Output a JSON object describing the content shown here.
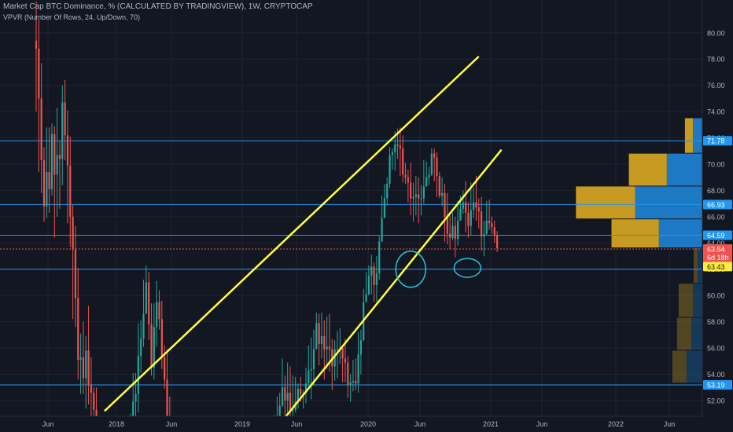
{
  "header": {
    "title": "Market Cap BTC Dominance, % (CALCULATED BY TRADINGVIEW), 1W, CRYPTOCAP",
    "indicator": "VPVR (Number Of Rows, 24, Up/Down, 70)"
  },
  "colors": {
    "background": "#131722",
    "grid": "#1f2330",
    "up": "#26a69a",
    "down": "#ef5350",
    "trendline": "#ffff3b",
    "hline": "#2196f3",
    "circle": "#26c6da",
    "vp_up": "#1e79c4",
    "vp_down": "#c79a21",
    "axis_text": "#b2b5be"
  },
  "chart_data": {
    "type": "candlestick",
    "y_axis": {
      "position": "right",
      "range": [
        50.8,
        82.5
      ],
      "tick_labels": [
        "52.00",
        "54.00",
        "56.00",
        "58.00",
        "60.00",
        "62.00",
        "64.00",
        "66.00",
        "68.00",
        "70.00",
        "72.00",
        "74.00",
        "76.00",
        "78.00",
        "80.00"
      ]
    },
    "x_axis": {
      "tick_labels": [
        "Jun",
        "2018",
        "Jun",
        "2019",
        "Jun",
        "2020",
        "Jun",
        "2021",
        "Jun",
        "2022",
        "Jun"
      ]
    },
    "price_tags": [
      {
        "value": 71.78,
        "label": "71.78",
        "bg": "#2196f3",
        "fg": "#ffffff"
      },
      {
        "value": 66.93,
        "label": "66.93",
        "bg": "#2196f3",
        "fg": "#ffffff"
      },
      {
        "value": 64.59,
        "label": "64.59",
        "bg": "#2196f3",
        "fg": "#ffffff"
      },
      {
        "value": 63.54,
        "label": "63.54",
        "bg": "#ef5350",
        "fg": "#ffffff"
      },
      {
        "value": 62.9,
        "label": "6d 18h",
        "bg": "#ef5350",
        "fg": "#ffffff"
      },
      {
        "value": 62.2,
        "label": "63.43",
        "bg": "#ffeb3b",
        "fg": "#131722"
      },
      {
        "value": 53.19,
        "label": "53.19",
        "bg": "#2196f3",
        "fg": "#ffffff"
      }
    ],
    "horizontal_lines": [
      71.78,
      66.93,
      64.59,
      62.0,
      53.19
    ],
    "last_price": 63.54,
    "trendlines": [
      {
        "from": [
          "2017-12",
          51.2
        ],
        "to": [
          "2020-09",
          78.2
        ]
      },
      {
        "from": [
          "2019-04",
          50.8
        ],
        "to": [
          "2020-11",
          71.1
        ]
      }
    ],
    "circled_lows": [
      {
        "center": [
          "2020-03",
          62.0
        ]
      },
      {
        "center": [
          "2020-08",
          62.1
        ]
      }
    ],
    "volume_profile": [
      {
        "price_low": 63.6,
        "price_high": 65.8,
        "up": 0.55,
        "down": 0.6
      },
      {
        "price_low": 65.8,
        "price_high": 68.3,
        "up": 0.85,
        "down": 0.75
      },
      {
        "price_low": 68.3,
        "price_high": 70.8,
        "up": 0.45,
        "down": 0.48
      },
      {
        "price_low": 70.8,
        "price_high": 73.5,
        "up": 0.12,
        "down": 0.1
      },
      {
        "price_low": 60.9,
        "price_high": 63.6,
        "up": 0.06,
        "down": 0.05,
        "faded": true
      },
      {
        "price_low": 58.3,
        "price_high": 60.9,
        "up": 0.12,
        "down": 0.18,
        "faded": true
      },
      {
        "price_low": 55.8,
        "price_high": 58.3,
        "up": 0.14,
        "down": 0.18,
        "faded": true
      },
      {
        "price_low": 53.3,
        "price_high": 55.8,
        "up": 0.2,
        "down": 0.18,
        "faded": true
      }
    ],
    "candles_weekly": [
      [
        79.4,
        78.8,
        82.4,
        74.0
      ],
      [
        78.8,
        75.0,
        81.0,
        69.4
      ],
      [
        75.0,
        70.3,
        77.7,
        67.8
      ],
      [
        70.3,
        66.8,
        71.3,
        65.6
      ],
      [
        66.8,
        69.4,
        72.8,
        65.9
      ],
      [
        69.4,
        68.1,
        72.8,
        66.3
      ],
      [
        68.1,
        72.3,
        73.1,
        67.6
      ],
      [
        72.3,
        69.2,
        72.9,
        64.4
      ],
      [
        69.2,
        70.7,
        74.3,
        66.0
      ],
      [
        70.7,
        70.4,
        71.8,
        66.6
      ],
      [
        70.4,
        74.7,
        76.0,
        68.4
      ],
      [
        74.7,
        72.2,
        76.4,
        70.3
      ],
      [
        72.2,
        69.9,
        74.1,
        65.5
      ],
      [
        69.9,
        66.0,
        72.1,
        63.7
      ],
      [
        66.0,
        63.5,
        66.9,
        58.2
      ],
      [
        63.5,
        59.8,
        65.3,
        57.6
      ],
      [
        59.8,
        55.1,
        62.1,
        53.6
      ],
      [
        55.1,
        55.3,
        57.1,
        52.5
      ],
      [
        55.3,
        53.7,
        58.0,
        52.5
      ],
      [
        53.7,
        55.8,
        56.9,
        51.4
      ],
      [
        55.8,
        53.2,
        59.2,
        51.7
      ],
      [
        53.2,
        52.6,
        55.3,
        49.3
      ],
      [
        52.6,
        51.3,
        53.0,
        48.0
      ],
      [
        51.3,
        48.0,
        53.0,
        45.3
      ],
      [
        48.0,
        46.6,
        49.5,
        44.9
      ],
      [
        46.6,
        45.2,
        49.3,
        43.7
      ],
      [
        45.2,
        46.9,
        48.4,
        43.2
      ],
      [
        46.9,
        45.3,
        49.1,
        43.6
      ],
      [
        45.3,
        47.5,
        48.4,
        43.1
      ],
      [
        47.5,
        45.8,
        50.1,
        43.5
      ],
      [
        45.8,
        46.3,
        49.0,
        44.1
      ],
      [
        46.3,
        47.6,
        48.9,
        46.0
      ],
      [
        47.6,
        46.8,
        49.9,
        43.4
      ],
      [
        46.8,
        45.9,
        48.2,
        44.1
      ],
      [
        45.9,
        45.6,
        49.2,
        42.9
      ],
      [
        45.6,
        46.7,
        47.9,
        44.2
      ],
      [
        46.7,
        49.5,
        51.0,
        45.7
      ],
      [
        49.5,
        51.9,
        54.1,
        48.2
      ],
      [
        51.9,
        52.5,
        54.1,
        49.3
      ],
      [
        52.5,
        55.4,
        57.9,
        51.1
      ],
      [
        55.4,
        56.7,
        58.1,
        54.1
      ],
      [
        56.7,
        58.6,
        61.2,
        56.1
      ],
      [
        58.6,
        61.0,
        62.3,
        59.9
      ],
      [
        61.0,
        57.8,
        61.8,
        56.6
      ],
      [
        57.8,
        54.5,
        59.4,
        53.9
      ],
      [
        54.5,
        57.6,
        59.4,
        53.6
      ],
      [
        57.6,
        59.5,
        61.1,
        56.1
      ],
      [
        59.5,
        58.2,
        60.4,
        57.4
      ],
      [
        58.2,
        55.3,
        59.6,
        54.4
      ],
      [
        55.3,
        53.6,
        56.2,
        52.9
      ],
      [
        53.6,
        50.5,
        55.9,
        48.4
      ],
      [
        50.5,
        49.2,
        52.3,
        45.3
      ],
      [
        49.2,
        46.9,
        49.8,
        42.1
      ],
      [
        46.9,
        38.6,
        47.3,
        34.8
      ],
      [
        38.6,
        37.2,
        40.2,
        34.0
      ],
      [
        37.2,
        34.2,
        38.4,
        32.7
      ],
      [
        34.2,
        33.6,
        36.5,
        32.3
      ],
      [
        33.6,
        35.9,
        37.7,
        32.0
      ],
      [
        35.9,
        33.0,
        38.2,
        31.7
      ],
      [
        33.0,
        34.6,
        34.8,
        30.9
      ],
      [
        34.6,
        38.4,
        39.5,
        34.1
      ],
      [
        38.4,
        42.7,
        43.6,
        36.6
      ],
      [
        42.7,
        44.3,
        46.0,
        40.0
      ],
      [
        44.3,
        45.7,
        46.8,
        44.2
      ],
      [
        45.7,
        44.4,
        48.1,
        41.4
      ],
      [
        44.4,
        44.7,
        46.9,
        42.1
      ],
      [
        44.7,
        43.6,
        45.6,
        41.2
      ],
      [
        43.6,
        40.2,
        44.9,
        37.8
      ],
      [
        40.2,
        38.4,
        40.5,
        36.4
      ],
      [
        38.4,
        37.4,
        40.8,
        36.7
      ],
      [
        37.4,
        38.3,
        39.9,
        36.6
      ],
      [
        38.3,
        37.4,
        39.4,
        36.3
      ],
      [
        37.4,
        37.8,
        39.5,
        34.8
      ],
      [
        37.8,
        40.1,
        41.0,
        36.0
      ],
      [
        40.1,
        42.4,
        43.8,
        38.8
      ],
      [
        42.4,
        41.1,
        43.3,
        39.4
      ],
      [
        41.1,
        43.1,
        44.7,
        39.6
      ],
      [
        43.1,
        42.5,
        44.7,
        41.4
      ],
      [
        42.5,
        39.8,
        44.1,
        37.3
      ],
      [
        39.8,
        38.9,
        40.9,
        37.7
      ],
      [
        38.9,
        38.5,
        40.1,
        37.2
      ],
      [
        38.5,
        38.6,
        40.1,
        37.2
      ],
      [
        38.6,
        38.5,
        40.2,
        35.8
      ],
      [
        38.5,
        38.3,
        41.0,
        37.6
      ],
      [
        38.3,
        39.4,
        40.9,
        37.6
      ],
      [
        39.4,
        40.5,
        42.4,
        38.0
      ],
      [
        40.5,
        41.0,
        43.3,
        40.1
      ],
      [
        41.0,
        42.0,
        43.0,
        39.8
      ],
      [
        42.0,
        44.7,
        46.0,
        41.0
      ],
      [
        44.7,
        46.6,
        47.1,
        45.5
      ],
      [
        46.6,
        47.3,
        47.8,
        45.3
      ],
      [
        47.3,
        48.4,
        50.9,
        47.3
      ],
      [
        48.4,
        49.6,
        52.3,
        46.8
      ],
      [
        49.6,
        51.6,
        52.6,
        48.8
      ],
      [
        51.6,
        53.0,
        55.2,
        51.5
      ],
      [
        53.0,
        52.0,
        53.9,
        49.5
      ],
      [
        52.0,
        52.6,
        54.9,
        50.4
      ],
      [
        52.6,
        51.2,
        54.6,
        50.2
      ],
      [
        51.2,
        51.3,
        53.9,
        49.4
      ],
      [
        51.3,
        51.9,
        53.8,
        51.1
      ],
      [
        51.9,
        52.9,
        53.3,
        51.4
      ],
      [
        52.9,
        52.5,
        53.8,
        51.9
      ],
      [
        52.5,
        52.6,
        52.8,
        51.4
      ],
      [
        52.6,
        53.3,
        54.5,
        51.8
      ],
      [
        53.3,
        54.3,
        56.2,
        53.1
      ],
      [
        54.3,
        54.4,
        56.8,
        52.1
      ],
      [
        54.4,
        55.9,
        57.4,
        53.1
      ],
      [
        55.9,
        57.9,
        58.7,
        56.2
      ],
      [
        57.9,
        56.3,
        58.6,
        54.7
      ],
      [
        56.3,
        56.9,
        58.7,
        55.2
      ],
      [
        56.9,
        55.9,
        58.1,
        53.6
      ],
      [
        55.9,
        56.1,
        58.4,
        54.4
      ],
      [
        56.1,
        55.9,
        58.6,
        54.2
      ],
      [
        55.9,
        54.6,
        56.7,
        52.8
      ],
      [
        54.6,
        55.9,
        56.6,
        53.5
      ],
      [
        55.9,
        55.9,
        57.3,
        53.7
      ],
      [
        55.9,
        56.0,
        57.5,
        54.8
      ],
      [
        56.0,
        55.2,
        56.2,
        53.4
      ],
      [
        55.2,
        54.9,
        56.7,
        53.4
      ],
      [
        54.9,
        53.2,
        55.4,
        52.2
      ],
      [
        53.2,
        53.4,
        54.0,
        51.9
      ],
      [
        53.4,
        53.5,
        55.1,
        52.7
      ],
      [
        53.5,
        53.3,
        55.2,
        52.8
      ],
      [
        53.3,
        55.5,
        57.2,
        52.6
      ],
      [
        55.5,
        56.6,
        57.4,
        54.0
      ],
      [
        56.6,
        59.5,
        60.5,
        56.5
      ],
      [
        59.5,
        60.1,
        61.8,
        59.5
      ],
      [
        60.1,
        61.5,
        62.3,
        60.0
      ],
      [
        61.5,
        62.2,
        63.1,
        60.1
      ],
      [
        62.2,
        60.8,
        62.5,
        59.5
      ],
      [
        60.8,
        61.7,
        63.0,
        59.5
      ],
      [
        61.7,
        64.1,
        64.5,
        61.2
      ],
      [
        64.1,
        65.9,
        67.6,
        64.1
      ],
      [
        65.9,
        67.4,
        68.5,
        66.1
      ],
      [
        67.4,
        68.5,
        69.0,
        66.9
      ],
      [
        68.5,
        70.7,
        71.3,
        68.2
      ],
      [
        70.7,
        70.9,
        71.2,
        69.6
      ],
      [
        70.9,
        71.5,
        72.5,
        69.5
      ],
      [
        71.5,
        71.4,
        72.7,
        70.4
      ],
      [
        71.4,
        71.2,
        72.8,
        69.1
      ],
      [
        71.2,
        69.2,
        72.2,
        68.6
      ],
      [
        69.2,
        69.0,
        70.1,
        68.5
      ],
      [
        69.0,
        68.6,
        69.6,
        67.1
      ],
      [
        68.6,
        67.4,
        70.1,
        66.1
      ],
      [
        67.4,
        67.5,
        68.6,
        65.6
      ],
      [
        67.5,
        67.7,
        69.1,
        66.1
      ],
      [
        67.7,
        67.4,
        69.0,
        65.5
      ],
      [
        67.4,
        67.4,
        68.4,
        66.1
      ],
      [
        67.4,
        68.3,
        70.3,
        67.0
      ],
      [
        68.3,
        69.0,
        70.2,
        68.8
      ],
      [
        69.0,
        69.2,
        69.8,
        68.4
      ],
      [
        69.2,
        70.8,
        71.2,
        69.1
      ],
      [
        70.8,
        70.5,
        71.2,
        68.7
      ],
      [
        70.5,
        69.1,
        70.9,
        67.5
      ],
      [
        69.1,
        67.6,
        69.4,
        67.4
      ],
      [
        67.6,
        67.8,
        69.0,
        66.8
      ],
      [
        67.8,
        66.0,
        68.5,
        64.1
      ],
      [
        66.0,
        64.7,
        67.8,
        63.9
      ],
      [
        64.7,
        64.4,
        66.1,
        63.5
      ],
      [
        64.4,
        65.3,
        66.3,
        64.2
      ],
      [
        65.3,
        64.3,
        66.0,
        62.9
      ],
      [
        64.3,
        65.7,
        67.2,
        63.8
      ],
      [
        65.7,
        66.6,
        67.6,
        65.8
      ],
      [
        66.6,
        67.1,
        68.0,
        66.2
      ],
      [
        67.1,
        66.3,
        68.7,
        64.8
      ],
      [
        66.3,
        65.3,
        67.1,
        64.4
      ],
      [
        65.3,
        66.5,
        68.6,
        64.6
      ],
      [
        66.5,
        67.1,
        68.2,
        65.9
      ],
      [
        67.1,
        66.7,
        69.1,
        65.7
      ],
      [
        66.7,
        66.4,
        67.4,
        65.1
      ],
      [
        66.4,
        64.5,
        67.5,
        63.4
      ],
      [
        64.5,
        64.7,
        65.7,
        63.0
      ],
      [
        64.7,
        65.7,
        67.2,
        64.6
      ],
      [
        65.7,
        65.5,
        67.3,
        65.0
      ],
      [
        65.5,
        65.2,
        66.0,
        64.7
      ],
      [
        65.2,
        64.6,
        65.7,
        64.0
      ],
      [
        64.6,
        63.6,
        64.9,
        63.3
      ]
    ]
  }
}
